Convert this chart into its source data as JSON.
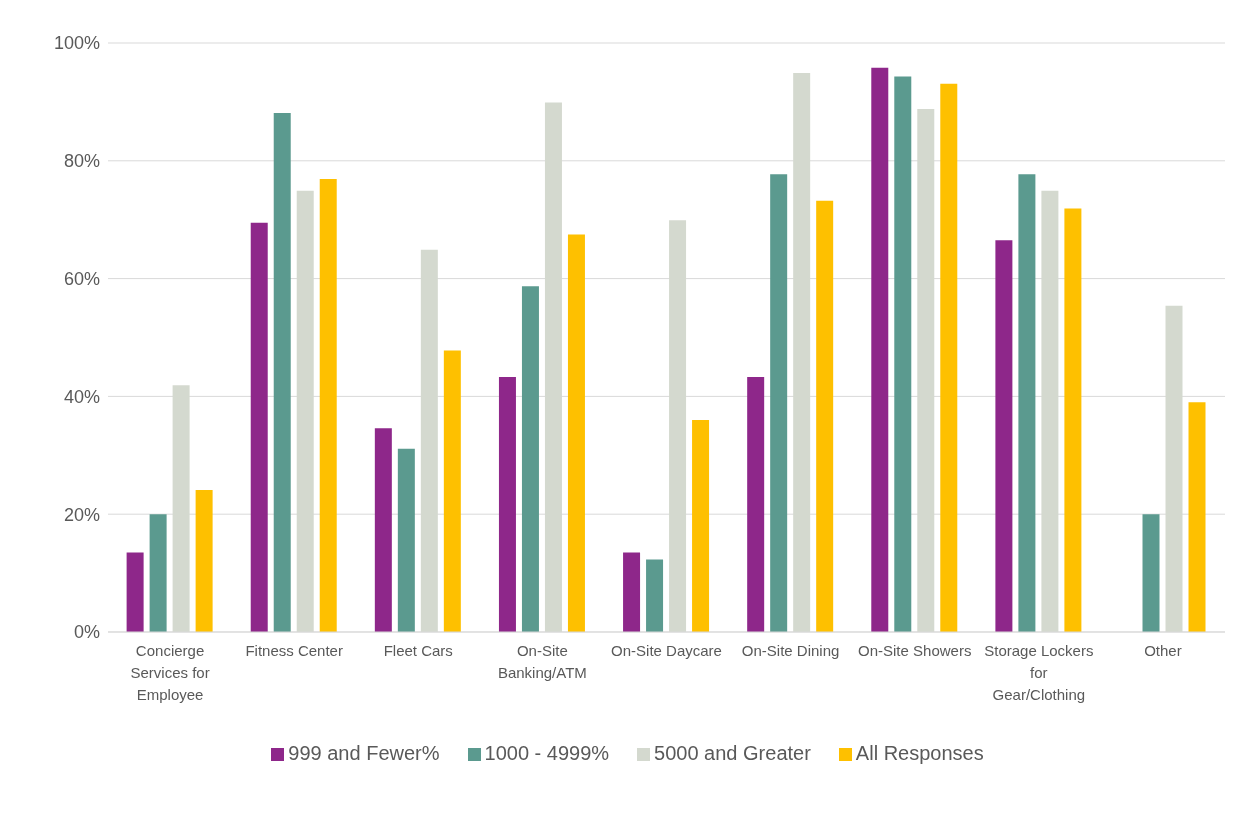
{
  "chart_data": {
    "type": "bar",
    "categories": [
      "Concierge Services for Employee",
      "Fitness Center",
      "Fleet Cars",
      "On-Site Banking/ATM",
      "On-Site Daycare",
      "On-Site Dining",
      "On-Site Showers",
      "Storage Lockers for Gear/Clothing",
      "Other"
    ],
    "series": [
      {
        "name": "999 and Fewer%",
        "color": "#8e278a",
        "values": [
          13.5,
          69.5,
          34.6,
          43.3,
          13.5,
          43.3,
          95.8,
          66.5,
          null
        ]
      },
      {
        "name": "1000 - 4999%",
        "color": "#5b9a8f",
        "values": [
          20,
          88.1,
          31.1,
          58.7,
          12.3,
          77.7,
          94.3,
          77.7,
          20
        ]
      },
      {
        "name": "5000 and Greater",
        "color": "#d4d9cf",
        "values": [
          41.9,
          74.9,
          64.9,
          89.9,
          69.9,
          94.9,
          88.8,
          74.9,
          55.4
        ]
      },
      {
        "name": "All Responses",
        "color": "#fec000",
        "values": [
          24.1,
          76.9,
          47.8,
          67.5,
          36,
          73.2,
          93.1,
          71.9,
          39
        ]
      }
    ],
    "ylim": [
      0,
      100
    ],
    "yticks": [
      {
        "value": 0,
        "label": "0%"
      },
      {
        "value": 20,
        "label": "20%"
      },
      {
        "value": 40,
        "label": "40%"
      },
      {
        "value": 60,
        "label": "60%"
      },
      {
        "value": 80,
        "label": "80%"
      },
      {
        "value": 100,
        "label": "100%"
      }
    ],
    "grid": "y",
    "legend": "bottom"
  }
}
